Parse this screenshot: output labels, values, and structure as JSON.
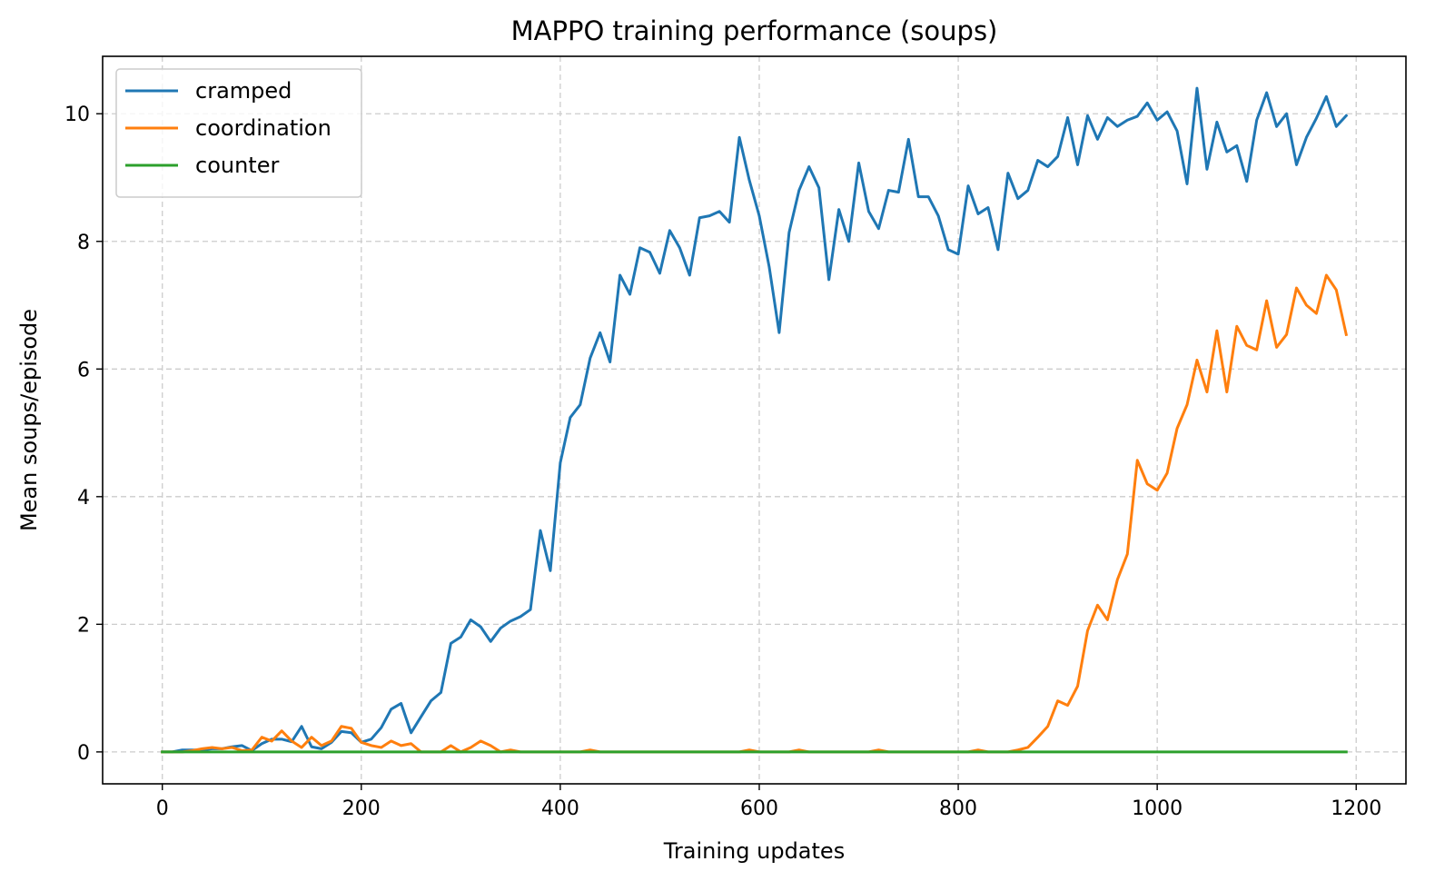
{
  "chart_data": {
    "type": "line",
    "title": "MAPPO training performance (soups)",
    "xlabel": "Training updates",
    "ylabel": "Mean soups/episode",
    "xlim": [
      -60,
      1250
    ],
    "ylim": [
      -0.5,
      10.9
    ],
    "xticks": [
      0,
      200,
      400,
      600,
      800,
      1000,
      1200
    ],
    "yticks": [
      0,
      2,
      4,
      6,
      8,
      10
    ],
    "grid": true,
    "legend_position": "upper-left",
    "x": [
      0,
      10,
      20,
      30,
      40,
      50,
      60,
      70,
      80,
      90,
      100,
      110,
      120,
      130,
      140,
      150,
      160,
      170,
      180,
      190,
      200,
      210,
      220,
      230,
      240,
      250,
      260,
      270,
      280,
      290,
      300,
      310,
      320,
      330,
      340,
      350,
      360,
      370,
      380,
      390,
      400,
      410,
      420,
      430,
      440,
      450,
      460,
      470,
      480,
      490,
      500,
      510,
      520,
      530,
      540,
      550,
      560,
      570,
      580,
      590,
      600,
      610,
      620,
      630,
      640,
      650,
      660,
      670,
      680,
      690,
      700,
      710,
      720,
      730,
      740,
      750,
      760,
      770,
      780,
      790,
      800,
      810,
      820,
      830,
      840,
      850,
      860,
      870,
      880,
      890,
      900,
      910,
      920,
      930,
      940,
      950,
      960,
      970,
      980,
      990,
      1000,
      1010,
      1020,
      1030,
      1040,
      1050,
      1060,
      1070,
      1080,
      1090,
      1100,
      1110,
      1120,
      1130,
      1140,
      1150,
      1160,
      1170,
      1180,
      1190
    ],
    "series": [
      {
        "name": "cramped",
        "color": "#1f77b4",
        "values": [
          0,
          0,
          0.03,
          0.03,
          0.03,
          0.05,
          0.05,
          0.08,
          0.1,
          0.02,
          0.13,
          0.2,
          0.2,
          0.16,
          0.4,
          0.08,
          0.05,
          0.15,
          0.32,
          0.3,
          0.15,
          0.2,
          0.38,
          0.67,
          0.76,
          0.3,
          0.55,
          0.8,
          0.93,
          1.7,
          1.8,
          2.07,
          1.96,
          1.73,
          1.94,
          2.05,
          2.12,
          2.23,
          3.47,
          2.84,
          4.53,
          5.24,
          5.44,
          6.17,
          6.57,
          6.11,
          7.47,
          7.17,
          7.9,
          7.83,
          7.5,
          8.17,
          7.9,
          7.47,
          8.37,
          8.4,
          8.47,
          8.3,
          9.63,
          8.96,
          8.4,
          7.6,
          6.57,
          8.14,
          8.8,
          9.17,
          8.84,
          7.4,
          8.5,
          8.0,
          9.23,
          8.47,
          8.2,
          8.8,
          8.77,
          9.6,
          8.7,
          8.7,
          8.4,
          7.87,
          7.8,
          8.87,
          8.43,
          8.53,
          7.87,
          9.07,
          8.67,
          8.8,
          9.27,
          9.17,
          9.33,
          9.94,
          9.2,
          9.97,
          9.6,
          9.94,
          9.8,
          9.9,
          9.96,
          10.17,
          9.9,
          10.03,
          9.73,
          8.9,
          10.4,
          9.13,
          9.87,
          9.4,
          9.5,
          8.94,
          9.9,
          10.33,
          9.8,
          10.0,
          9.2,
          9.63,
          9.93,
          10.27,
          9.8,
          9.97
        ]
      },
      {
        "name": "coordination",
        "color": "#ff7f0e",
        "values": [
          0,
          0,
          0,
          0.02,
          0.05,
          0.07,
          0.05,
          0.07,
          0.02,
          0.03,
          0.23,
          0.17,
          0.33,
          0.17,
          0.07,
          0.23,
          0.1,
          0.17,
          0.4,
          0.37,
          0.15,
          0.1,
          0.07,
          0.17,
          0.1,
          0.13,
          0,
          0,
          0,
          0.1,
          0,
          0.07,
          0.17,
          0.1,
          0,
          0.03,
          0,
          0,
          0,
          0,
          0,
          0,
          0,
          0.03,
          0,
          0,
          0,
          0,
          0,
          0,
          0,
          0,
          0,
          0,
          0,
          0,
          0,
          0,
          0,
          0.03,
          0,
          0,
          0,
          0,
          0.03,
          0,
          0,
          0,
          0,
          0,
          0,
          0,
          0.03,
          0,
          0,
          0,
          0,
          0,
          0,
          0,
          0,
          0,
          0.03,
          0,
          0,
          0,
          0.03,
          0.07,
          0.23,
          0.4,
          0.8,
          0.73,
          1.03,
          1.9,
          2.3,
          2.07,
          2.7,
          3.1,
          4.57,
          4.2,
          4.1,
          4.37,
          5.07,
          5.44,
          6.14,
          5.64,
          6.6,
          5.64,
          6.67,
          6.37,
          6.3,
          7.07,
          6.34,
          6.54,
          7.27,
          7.0,
          6.87,
          7.47,
          7.24,
          6.54
        ]
      },
      {
        "name": "counter",
        "color": "#2ca02c",
        "values": [
          0,
          0,
          0,
          0,
          0,
          0,
          0,
          0,
          0,
          0,
          0,
          0,
          0,
          0,
          0,
          0,
          0,
          0,
          0,
          0,
          0,
          0,
          0,
          0,
          0,
          0,
          0,
          0,
          0,
          0,
          0,
          0,
          0,
          0,
          0,
          0,
          0,
          0,
          0,
          0,
          0,
          0,
          0,
          0,
          0,
          0,
          0,
          0,
          0,
          0,
          0,
          0,
          0,
          0,
          0,
          0,
          0,
          0,
          0,
          0,
          0,
          0,
          0,
          0,
          0,
          0,
          0,
          0,
          0,
          0,
          0,
          0,
          0,
          0,
          0,
          0,
          0,
          0,
          0,
          0,
          0,
          0,
          0,
          0,
          0,
          0,
          0,
          0,
          0,
          0,
          0,
          0,
          0,
          0,
          0,
          0,
          0,
          0,
          0,
          0,
          0,
          0,
          0,
          0,
          0,
          0,
          0,
          0,
          0,
          0,
          0,
          0,
          0,
          0,
          0,
          0,
          0,
          0,
          0,
          0
        ]
      }
    ]
  }
}
